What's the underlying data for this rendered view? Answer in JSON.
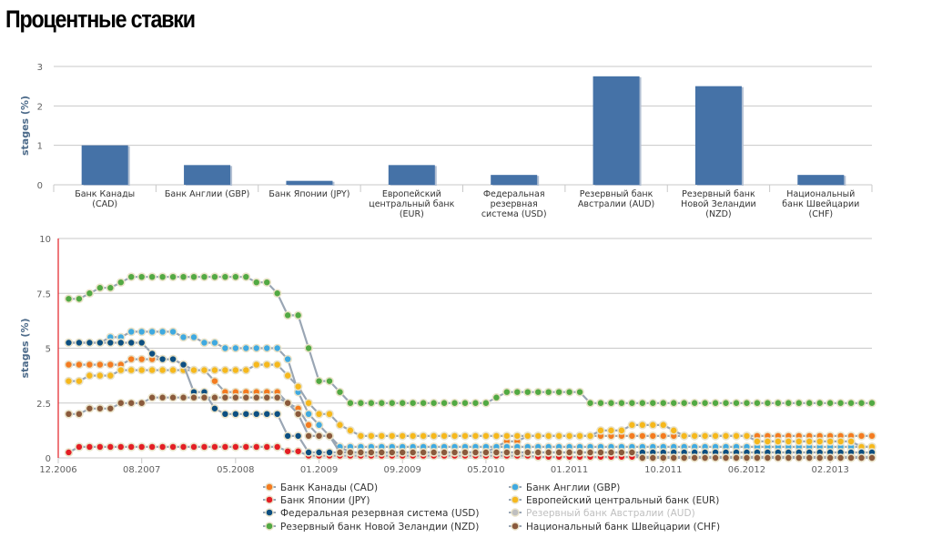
{
  "title": "Процентные ставки",
  "chart_data": [
    {
      "type": "bar",
      "ylabel": "stages (%)",
      "ylim": [
        0,
        3
      ],
      "yticks": [
        "0",
        "1",
        "2",
        "3"
      ],
      "grid": true,
      "color": "#4572a7",
      "categories": [
        [
          "Банк Канады",
          "(CAD)"
        ],
        [
          "Банк Англии (GBP)"
        ],
        [
          "Банк Японии (JPY)"
        ],
        [
          "Европейский",
          "центральный банк",
          "(EUR)"
        ],
        [
          "Федеральная",
          "резервная",
          "система (USD)"
        ],
        [
          "Резервный банк",
          "Австралии (AUD)"
        ],
        [
          "Резервный банк",
          "Новой Зеландии",
          "(NZD)"
        ],
        [
          "Национальный",
          "банк Швейцарии",
          "(CHF)"
        ]
      ],
      "values": [
        1.0,
        0.5,
        0.1,
        0.5,
        0.25,
        2.75,
        2.5,
        0.25
      ]
    },
    {
      "type": "line",
      "ylabel": "stages (%)",
      "ylim": [
        0,
        10
      ],
      "yticks": [
        "0",
        "2.5",
        "5",
        "7.5",
        "10"
      ],
      "xlim": [
        "2006-12",
        "2013-06"
      ],
      "xticks": [
        "12.2006",
        "08.2007",
        "05.2008",
        "01.2009",
        "09.2009",
        "05.2010",
        "01.2011",
        "10.2011",
        "06.2012",
        "02.2013"
      ],
      "grid": true,
      "legend_position": "bottom",
      "series": [
        {
          "name": "Банк Канады (CAD)",
          "color": "#f47b20",
          "legend_color": "#333333",
          "points": [
            [
              "2007-01",
              4.25
            ],
            [
              "2007-07",
              4.5
            ],
            [
              "2007-12",
              4.25
            ],
            [
              "2008-01",
              4.0
            ],
            [
              "2008-03",
              3.5
            ],
            [
              "2008-04",
              3.0
            ],
            [
              "2008-10",
              2.5
            ],
            [
              "2008-11",
              2.25
            ],
            [
              "2008-12",
              1.5
            ],
            [
              "2009-01",
              1.0
            ],
            [
              "2009-03",
              0.5
            ],
            [
              "2009-04",
              0.25
            ],
            [
              "2010-06",
              0.5
            ],
            [
              "2010-07",
              0.75
            ],
            [
              "2010-09",
              1.0
            ],
            [
              "2013-06",
              1.0
            ]
          ]
        },
        {
          "name": "Банк Англии (GBP)",
          "color": "#3fa9e0",
          "legend_color": "#333333",
          "points": [
            [
              "2007-01",
              5.25
            ],
            [
              "2007-05",
              5.5
            ],
            [
              "2007-07",
              5.75
            ],
            [
              "2007-12",
              5.5
            ],
            [
              "2008-02",
              5.25
            ],
            [
              "2008-04",
              5.0
            ],
            [
              "2008-10",
              4.5
            ],
            [
              "2008-11",
              3.0
            ],
            [
              "2008-12",
              2.0
            ],
            [
              "2009-01",
              1.5
            ],
            [
              "2009-02",
              1.0
            ],
            [
              "2009-03",
              0.5
            ],
            [
              "2013-06",
              0.5
            ]
          ]
        },
        {
          "name": "Банк Японии (JPY)",
          "color": "#e31e24",
          "legend_color": "#333333",
          "points": [
            [
              "2007-01",
              0.25
            ],
            [
              "2007-02",
              0.5
            ],
            [
              "2008-10",
              0.3
            ],
            [
              "2008-12",
              0.1
            ],
            [
              "2010-10",
              0.05
            ],
            [
              "2013-06",
              0.05
            ]
          ]
        },
        {
          "name": "Европейский центральный банк (EUR)",
          "color": "#f6b81c",
          "legend_color": "#333333",
          "points": [
            [
              "2007-01",
              3.5
            ],
            [
              "2007-03",
              3.75
            ],
            [
              "2007-06",
              4.0
            ],
            [
              "2008-07",
              4.25
            ],
            [
              "2008-10",
              3.75
            ],
            [
              "2008-11",
              3.25
            ],
            [
              "2008-12",
              2.5
            ],
            [
              "2009-01",
              2.0
            ],
            [
              "2009-03",
              1.5
            ],
            [
              "2009-04",
              1.25
            ],
            [
              "2009-05",
              1.0
            ],
            [
              "2011-04",
              1.25
            ],
            [
              "2011-07",
              1.5
            ],
            [
              "2011-11",
              1.25
            ],
            [
              "2011-12",
              1.0
            ],
            [
              "2012-07",
              0.75
            ],
            [
              "2013-05",
              0.5
            ],
            [
              "2013-06",
              0.5
            ]
          ]
        },
        {
          "name": "Федеральная резервная система (USD)",
          "color": "#0d4f81",
          "legend_color": "#333333",
          "points": [
            [
              "2007-01",
              5.25
            ],
            [
              "2007-09",
              4.75
            ],
            [
              "2007-10",
              4.5
            ],
            [
              "2007-12",
              4.25
            ],
            [
              "2008-01",
              3.0
            ],
            [
              "2008-03",
              2.25
            ],
            [
              "2008-04",
              2.0
            ],
            [
              "2008-10",
              1.0
            ],
            [
              "2008-12",
              0.25
            ],
            [
              "2013-06",
              0.25
            ]
          ]
        },
        {
          "name": "Резервный банк Австралии (AUD)",
          "color": "#bfbfbf",
          "legend_color": "#bfbfbf",
          "points": []
        },
        {
          "name": "Резервный банк Новой Зеландии (NZD)",
          "color": "#52a943",
          "legend_color": "#333333",
          "points": [
            [
              "2007-01",
              7.25
            ],
            [
              "2007-03",
              7.5
            ],
            [
              "2007-04",
              7.75
            ],
            [
              "2007-06",
              8.0
            ],
            [
              "2007-07",
              8.25
            ],
            [
              "2008-06",
              8.25
            ],
            [
              "2008-07",
              8.0
            ],
            [
              "2008-09",
              7.5
            ],
            [
              "2008-10",
              6.5
            ],
            [
              "2008-12",
              5.0
            ],
            [
              "2009-01",
              3.5
            ],
            [
              "2009-03",
              3.0
            ],
            [
              "2009-04",
              2.5
            ],
            [
              "2010-06",
              2.75
            ],
            [
              "2010-07",
              3.0
            ],
            [
              "2011-03",
              2.5
            ],
            [
              "2013-06",
              2.5
            ]
          ]
        },
        {
          "name": "Национальный банк Швейцарии (CHF)",
          "color": "#8a5a3c",
          "legend_color": "#333333",
          "points": [
            [
              "2007-01",
              2.0
            ],
            [
              "2007-03",
              2.25
            ],
            [
              "2007-06",
              2.5
            ],
            [
              "2007-09",
              2.75
            ],
            [
              "2008-10",
              2.5
            ],
            [
              "2008-11",
              2.0
            ],
            [
              "2008-12",
              1.0
            ],
            [
              "2009-03",
              0.25
            ],
            [
              "2011-08",
              0.0
            ],
            [
              "2013-06",
              0.0
            ]
          ]
        }
      ]
    }
  ]
}
